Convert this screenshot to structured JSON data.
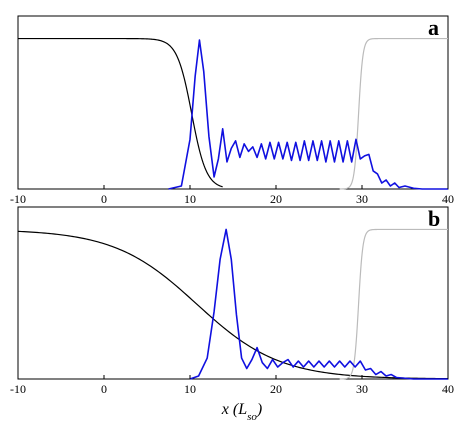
{
  "chart_data": [
    {
      "type": "line",
      "panel_label": "a",
      "xlim": [
        -10,
        40
      ],
      "ylim": [
        0,
        1.15
      ],
      "x_ticks": [
        -10,
        0,
        10,
        20,
        30,
        40
      ],
      "grid": false,
      "series": [
        {
          "color": "#000000",
          "kind": "step_down",
          "x_mid": 10.2,
          "width": 0.85,
          "level": 1.0
        },
        {
          "color": "#bbbbbb",
          "kind": "step_up",
          "x_mid": 29.6,
          "width": 0.25,
          "level": 1.0
        },
        {
          "color": "#1010e0",
          "kind": "wavepacket",
          "x": [
            7.5,
            9.0,
            10.0,
            10.6,
            11.1,
            11.6,
            12.2,
            12.8,
            13.3,
            13.8,
            14.3,
            14.8,
            15.3,
            15.8,
            16.3,
            16.8,
            17.3,
            17.8,
            18.3,
            18.8,
            19.3,
            19.8,
            20.3,
            20.8,
            21.3,
            21.8,
            22.3,
            22.8,
            23.3,
            23.8,
            24.3,
            24.8,
            25.3,
            25.8,
            26.3,
            26.8,
            27.3,
            27.8,
            28.3,
            28.8,
            29.3,
            29.8,
            30.3,
            30.8,
            31.3,
            31.8,
            32.3,
            32.8,
            33.3,
            33.8,
            34.3,
            35.0,
            36.0,
            37.0,
            40.0
          ],
          "y": [
            0.0,
            0.02,
            0.33,
            0.75,
            0.99,
            0.78,
            0.35,
            0.08,
            0.2,
            0.4,
            0.18,
            0.27,
            0.32,
            0.21,
            0.3,
            0.25,
            0.28,
            0.21,
            0.3,
            0.2,
            0.31,
            0.2,
            0.31,
            0.2,
            0.31,
            0.19,
            0.31,
            0.19,
            0.32,
            0.19,
            0.32,
            0.19,
            0.32,
            0.18,
            0.32,
            0.18,
            0.32,
            0.18,
            0.32,
            0.18,
            0.33,
            0.2,
            0.22,
            0.23,
            0.12,
            0.1,
            0.04,
            0.06,
            0.02,
            0.04,
            0.01,
            0.02,
            0.005,
            0.0,
            0.0
          ]
        }
      ]
    },
    {
      "type": "line",
      "panel_label": "b",
      "xlim": [
        -10,
        40
      ],
      "ylim": [
        0,
        1.15
      ],
      "x_ticks": [
        -10,
        0,
        10,
        20,
        30,
        40
      ],
      "xlabel": "x (L_so)",
      "grid": false,
      "series": [
        {
          "color": "#000000",
          "kind": "step_down",
          "x_mid": 10.8,
          "width": 4.8,
          "level": 1.0
        },
        {
          "color": "#bbbbbb",
          "kind": "step_up",
          "x_mid": 29.6,
          "width": 0.25,
          "level": 1.0
        },
        {
          "color": "#1010e0",
          "kind": "wavepacket",
          "x": [
            10.0,
            11.0,
            12.0,
            12.8,
            13.5,
            14.2,
            14.8,
            15.4,
            16.0,
            16.6,
            17.2,
            17.8,
            18.4,
            19.0,
            19.6,
            20.2,
            20.8,
            21.4,
            22.0,
            22.6,
            23.2,
            23.8,
            24.4,
            25.0,
            25.6,
            26.2,
            26.8,
            27.4,
            28.0,
            28.6,
            29.2,
            29.8,
            30.4,
            31.0,
            31.6,
            32.2,
            32.8,
            33.4,
            34.0,
            35.0,
            36.0,
            40.0
          ],
          "y": [
            0.0,
            0.02,
            0.14,
            0.45,
            0.8,
            1.0,
            0.8,
            0.43,
            0.14,
            0.07,
            0.13,
            0.21,
            0.11,
            0.07,
            0.13,
            0.08,
            0.11,
            0.13,
            0.08,
            0.12,
            0.08,
            0.12,
            0.08,
            0.12,
            0.08,
            0.12,
            0.08,
            0.12,
            0.08,
            0.12,
            0.08,
            0.12,
            0.06,
            0.07,
            0.03,
            0.05,
            0.02,
            0.03,
            0.01,
            0.005,
            0.0,
            0.0
          ]
        }
      ]
    }
  ]
}
